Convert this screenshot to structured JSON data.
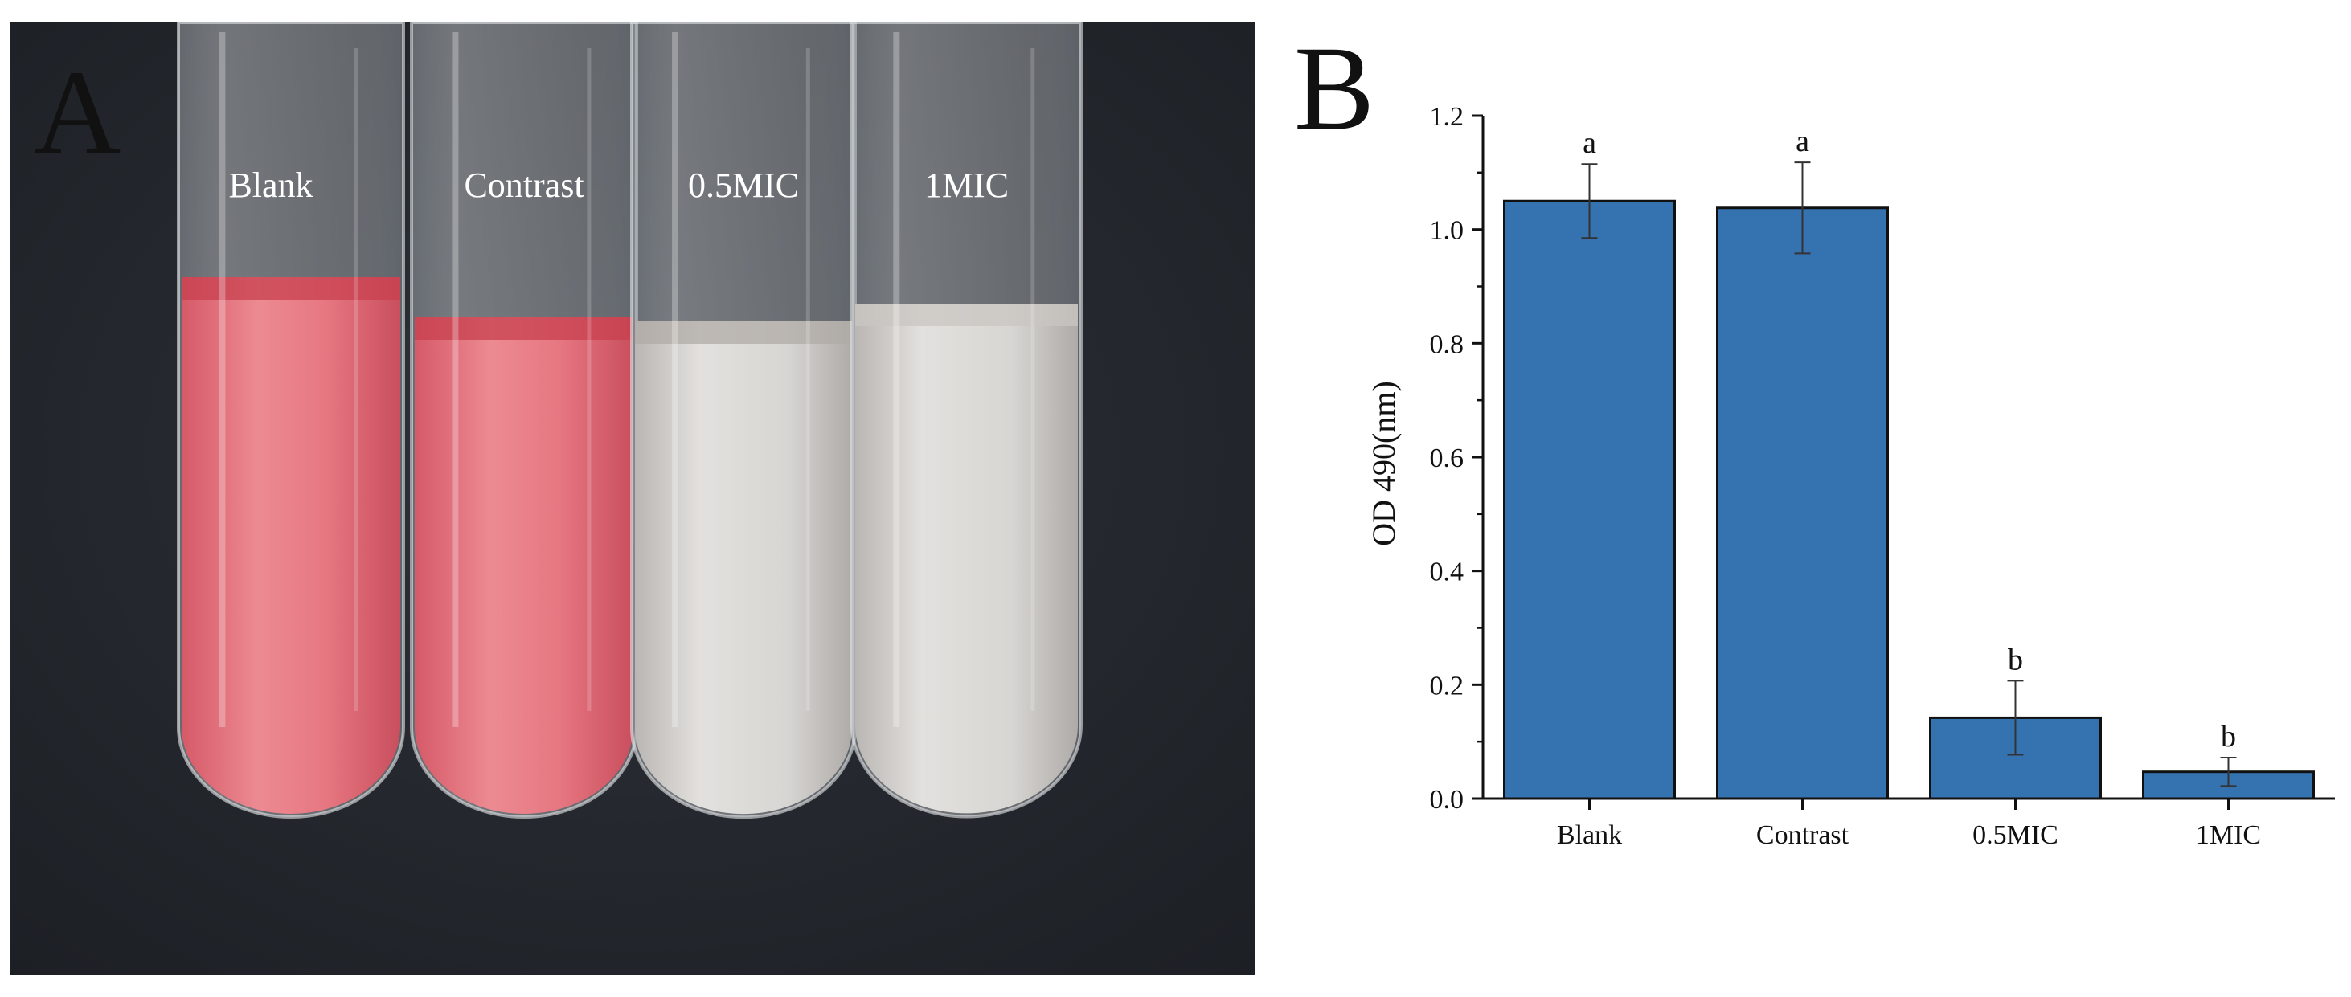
{
  "panel_a": {
    "letter": "A",
    "tube_labels": [
      "Blank",
      "Contrast",
      "0.5MIC",
      "1MIC"
    ],
    "colors": {
      "background": "#25292f",
      "pink_liquid": "#e0707a",
      "clear_liquid": "#d9d6d2"
    }
  },
  "panel_b": {
    "letter": "B"
  },
  "chart_data": {
    "type": "bar",
    "categories": [
      "Blank",
      "Contrast",
      "0.5MIC",
      "1MIC"
    ],
    "values": [
      1.05,
      1.038,
      0.142,
      0.047
    ],
    "errors": [
      0.065,
      0.08,
      0.065,
      0.025
    ],
    "significance": [
      "a",
      "a",
      "b",
      "b"
    ],
    "title": "",
    "xlabel": "",
    "ylabel": "OD 490(nm)",
    "ylim": [
      0,
      1.2
    ],
    "yticks": [
      "0.0",
      "0.2",
      "0.4",
      "0.6",
      "0.8",
      "1.0",
      "1.2"
    ],
    "grid": false,
    "bar_color": "#3572b0"
  }
}
